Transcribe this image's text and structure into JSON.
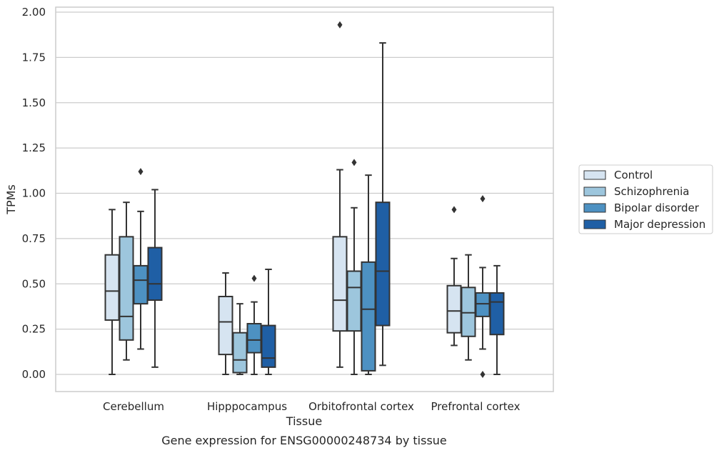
{
  "chart_data": {
    "type": "box",
    "title": "Gene expression for ENSG00000248734 by tissue",
    "xlabel": "Tissue",
    "ylabel": "TPMs",
    "ylim": [
      -0.09,
      2.03
    ],
    "yticks": [
      "0.00",
      "0.25",
      "0.50",
      "0.75",
      "1.00",
      "1.25",
      "1.50",
      "1.75",
      "2.00"
    ],
    "grid": true,
    "legend_position": "right",
    "categories": [
      "Cerebellum",
      "Hipppocampus",
      "Orbitofrontal cortex",
      "Prefrontal cortex"
    ],
    "series": [
      {
        "name": "Control",
        "color": "#d6e4f1",
        "boxes": [
          {
            "min": 0.0,
            "q1": 0.3,
            "median": 0.46,
            "q3": 0.66,
            "max": 0.91,
            "outliers": []
          },
          {
            "min": 0.0,
            "q1": 0.11,
            "median": 0.29,
            "q3": 0.43,
            "max": 0.56,
            "outliers": []
          },
          {
            "min": 0.04,
            "q1": 0.24,
            "median": 0.41,
            "q3": 0.76,
            "max": 1.13,
            "outliers": [
              1.93
            ]
          },
          {
            "min": 0.16,
            "q1": 0.23,
            "median": 0.35,
            "q3": 0.49,
            "max": 0.64,
            "outliers": [
              0.91
            ]
          }
        ]
      },
      {
        "name": "Schizophrenia",
        "color": "#9dc6dd",
        "boxes": [
          {
            "min": 0.08,
            "q1": 0.19,
            "median": 0.32,
            "q3": 0.76,
            "max": 0.95,
            "outliers": []
          },
          {
            "min": 0.0,
            "q1": 0.01,
            "median": 0.08,
            "q3": 0.23,
            "max": 0.39,
            "outliers": []
          },
          {
            "min": 0.0,
            "q1": 0.24,
            "median": 0.48,
            "q3": 0.57,
            "max": 0.92,
            "outliers": [
              1.17
            ]
          },
          {
            "min": 0.08,
            "q1": 0.21,
            "median": 0.34,
            "q3": 0.48,
            "max": 0.66,
            "outliers": []
          }
        ]
      },
      {
        "name": "Bipolar disorder",
        "color": "#4d91c2",
        "boxes": [
          {
            "min": 0.14,
            "q1": 0.39,
            "median": 0.52,
            "q3": 0.6,
            "max": 0.9,
            "outliers": [
              1.12
            ]
          },
          {
            "min": 0.0,
            "q1": 0.12,
            "median": 0.19,
            "q3": 0.28,
            "max": 0.4,
            "outliers": [
              0.53
            ]
          },
          {
            "min": 0.0,
            "q1": 0.02,
            "median": 0.36,
            "q3": 0.62,
            "max": 1.1,
            "outliers": []
          },
          {
            "min": 0.14,
            "q1": 0.32,
            "median": 0.39,
            "q3": 0.45,
            "max": 0.59,
            "outliers": [
              0.97,
              0.0
            ]
          }
        ]
      },
      {
        "name": "Major depression",
        "color": "#1f5fa5",
        "boxes": [
          {
            "min": 0.04,
            "q1": 0.41,
            "median": 0.5,
            "q3": 0.7,
            "max": 1.02,
            "outliers": []
          },
          {
            "min": 0.0,
            "q1": 0.04,
            "median": 0.09,
            "q3": 0.27,
            "max": 0.58,
            "outliers": []
          },
          {
            "min": 0.05,
            "q1": 0.27,
            "median": 0.57,
            "q3": 0.95,
            "max": 1.83,
            "outliers": []
          },
          {
            "min": 0.0,
            "q1": 0.22,
            "median": 0.4,
            "q3": 0.45,
            "max": 0.6,
            "outliers": []
          }
        ]
      }
    ]
  }
}
